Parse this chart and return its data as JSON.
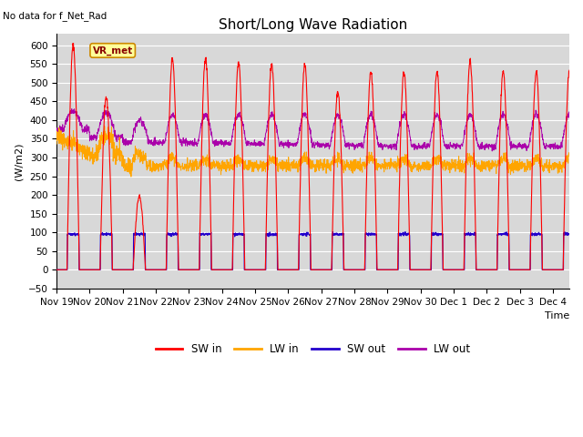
{
  "title": "Short/Long Wave Radiation",
  "subtitle": "No data for f_Net_Rad",
  "xlabel": "Time",
  "ylabel": "(W/m2)",
  "ylim": [
    -50,
    630
  ],
  "yticks": [
    -50,
    0,
    50,
    100,
    150,
    200,
    250,
    300,
    350,
    400,
    450,
    500,
    550,
    600
  ],
  "legend_entries": [
    "SW in",
    "LW in",
    "SW out",
    "LW out"
  ],
  "legend_colors": [
    "#ff0000",
    "#ffa500",
    "#2200cc",
    "#aa00aa"
  ],
  "box_label": "VR_met",
  "box_color": "#ffff99",
  "box_border": "#cc8800",
  "n_days": 15.5,
  "bg_color": "#d8d8d8",
  "grid_color": "#ffffff",
  "title_fontsize": 11,
  "label_fontsize": 8,
  "tick_fontsize": 7.5
}
